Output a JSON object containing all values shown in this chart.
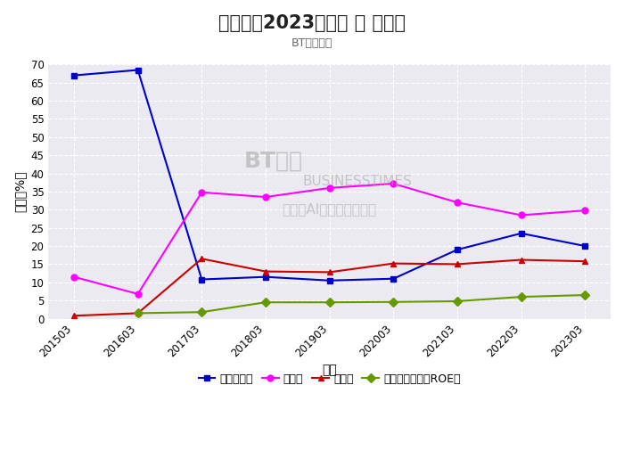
{
  "title": "黄山胶囊2023三季报 － 利润率",
  "subtitle": "BT财经绘制",
  "xlabel": "项目",
  "ylabel": "数额（%）",
  "x_labels": [
    "201503",
    "201603",
    "201703",
    "201803",
    "201903",
    "202003",
    "202103",
    "202203",
    "202303"
  ],
  "series": [
    {
      "name": "资产负债率",
      "color": "#0000CD",
      "marker": "s",
      "values": [
        67.0,
        68.5,
        10.8,
        11.5,
        10.5,
        11.0,
        19.0,
        23.5,
        20.0
      ]
    },
    {
      "name": "毛利率",
      "color": "#FF00FF",
      "marker": "o",
      "values": [
        11.5,
        6.8,
        34.8,
        33.5,
        36.0,
        37.2,
        32.0,
        28.5,
        29.8
      ]
    },
    {
      "name": "净利率",
      "color": "#CC0000",
      "marker": "^",
      "values": [
        0.8,
        1.5,
        16.5,
        13.0,
        12.8,
        15.2,
        15.0,
        16.2,
        15.8
      ]
    },
    {
      "name": "净资产收益率（ROE）",
      "color": "#669900",
      "marker": "D",
      "values": [
        null,
        1.5,
        1.8,
        4.5,
        4.5,
        4.6,
        4.8,
        6.0,
        6.5
      ]
    }
  ],
  "ylim": [
    0,
    70
  ],
  "yticks": [
    0,
    5,
    10,
    15,
    20,
    25,
    30,
    35,
    40,
    45,
    50,
    55,
    60,
    65,
    70
  ],
  "bg_color": "#FFFFFF",
  "plot_bg_color": "#EAEAF0",
  "grid_color": "#FFFFFF",
  "watermark1": "BT财经",
  "watermark2": "BUSINESSTIMES",
  "watermark3": "内容由AI生成，仅供参考",
  "title_fontsize": 15,
  "subtitle_fontsize": 9,
  "axis_label_fontsize": 10,
  "tick_fontsize": 8.5,
  "legend_fontsize": 9,
  "marker_size": 5,
  "line_width": 1.5
}
